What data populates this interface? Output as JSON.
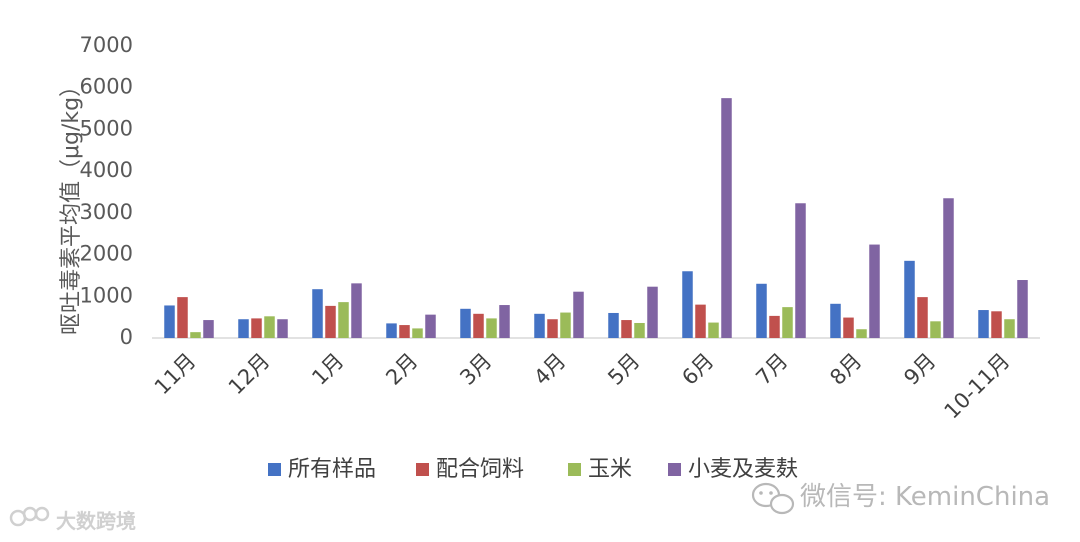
{
  "chart_data": {
    "type": "bar",
    "title": "",
    "ylabel": "呕吐毒素平均值（μg/kg）",
    "ylim": [
      0,
      7000
    ],
    "yticks": [
      0,
      1000,
      2000,
      3000,
      4000,
      5000,
      6000,
      7000
    ],
    "grid": false,
    "legend_position": "bottom",
    "categories": [
      "11月",
      "12月",
      "1月",
      "2月",
      "3月",
      "4月",
      "5月",
      "6月",
      "7月",
      "8月",
      "9月",
      "10-11月"
    ],
    "series": [
      {
        "name": "所有样品",
        "color": "#4472c4",
        "values": [
          780,
          450,
          1170,
          350,
          700,
          580,
          600,
          1600,
          1300,
          820,
          1850,
          670
        ]
      },
      {
        "name": "配合饲料",
        "color": "#c0504d",
        "values": [
          980,
          470,
          770,
          310,
          580,
          450,
          430,
          800,
          530,
          490,
          980,
          640
        ]
      },
      {
        "name": "玉米",
        "color": "#9bbb59",
        "values": [
          140,
          520,
          860,
          230,
          470,
          610,
          360,
          370,
          740,
          210,
          400,
          450
        ]
      },
      {
        "name": "小麦及麦麸",
        "color": "#8064a2",
        "values": [
          430,
          450,
          1310,
          560,
          790,
          1110,
          1230,
          5750,
          3230,
          2240,
          3350,
          1390
        ]
      }
    ]
  },
  "watermarks": {
    "wechat": "微信号: KeminChina",
    "bigdata": "大数跨境"
  }
}
